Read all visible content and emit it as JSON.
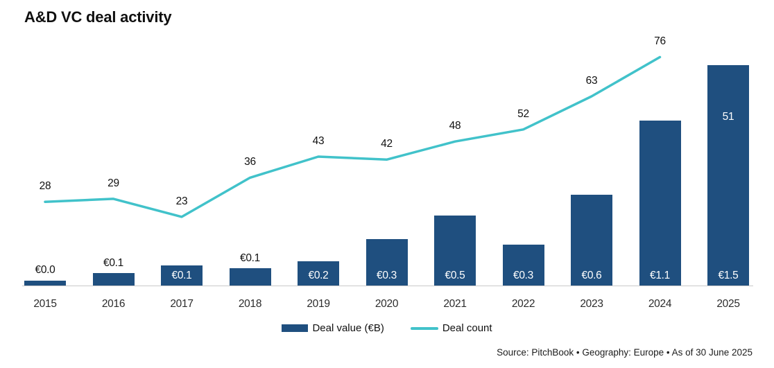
{
  "title": "A&D VC deal activity",
  "legend": {
    "deal_value_label": "Deal value (€B)",
    "deal_count_label": "Deal count"
  },
  "source_note": "Source: PitchBook  •  Geography: Europe  •  As of 30 June 2025",
  "colors": {
    "bar": "#1f4f7f",
    "line": "#41c2ca",
    "label_dark": "#101010",
    "label_inside": "#ffffff",
    "axis_line": "#c9c9c9"
  },
  "chart_data": {
    "type": "combo-bar-line",
    "title": "A&D VC deal activity",
    "categories": [
      "2015",
      "2016",
      "2017",
      "2018",
      "2019",
      "2020",
      "2021",
      "2022",
      "2023",
      "2024",
      "2025"
    ],
    "series": [
      {
        "name": "Deal value (€B)",
        "type": "bar",
        "color": "#1f4f7f",
        "unit": "€B",
        "labels": [
          "€0.0",
          "€0.1",
          "€0.1",
          "€0.1",
          "€0.2",
          "€0.3",
          "€0.5",
          "€0.3",
          "€0.6",
          "€1.1",
          "€1.5"
        ],
        "values": [
          0.04,
          0.09,
          0.14,
          0.12,
          0.17,
          0.32,
          0.48,
          0.28,
          0.62,
          1.12,
          1.5
        ]
      },
      {
        "name": "Deal count",
        "type": "line",
        "color": "#41c2ca",
        "values": [
          28,
          29,
          23,
          36,
          43,
          42,
          48,
          52,
          63,
          76,
          51
        ],
        "isolated_last_point": true
      }
    ],
    "layout_hints": {
      "value_axis_hidden": true,
      "grid": false,
      "legend_position": "bottom-center",
      "data_labels": "all points labeled"
    }
  }
}
